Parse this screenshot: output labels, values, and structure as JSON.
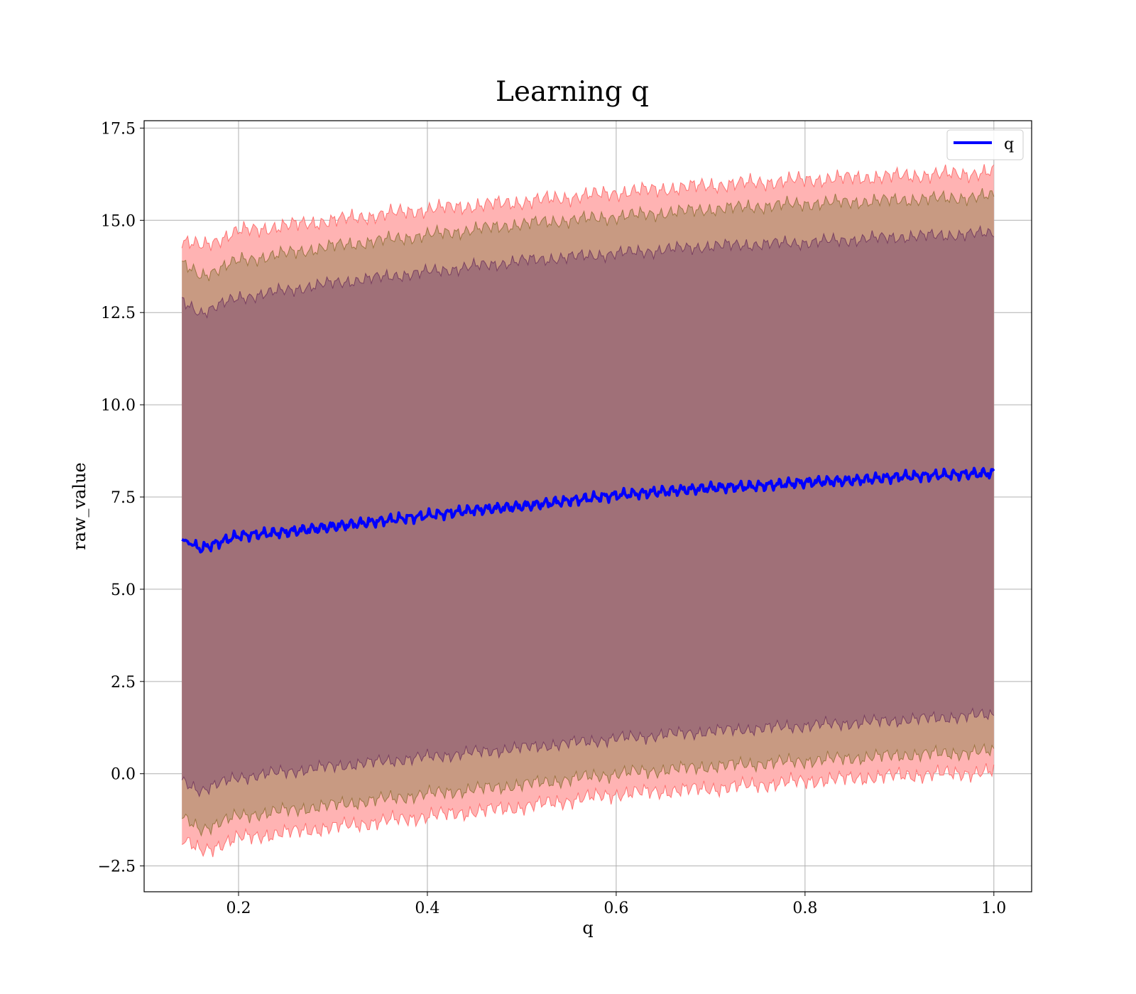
{
  "chart_data": {
    "type": "line",
    "title": "Learning q",
    "xlabel": "q",
    "ylabel": "raw_value",
    "xlim": [
      0.1,
      1.04
    ],
    "ylim": [
      -3.2,
      17.7
    ],
    "xticks": [
      0.2,
      0.4,
      0.6,
      0.8,
      1.0
    ],
    "xtick_labels": [
      "0.2",
      "0.4",
      "0.6",
      "0.8",
      "1.0"
    ],
    "yticks": [
      -2.5,
      0.0,
      2.5,
      5.0,
      7.5,
      10.0,
      12.5,
      15.0,
      17.5
    ],
    "ytick_labels": [
      "−2.5",
      "0.0",
      "2.5",
      "5.0",
      "7.5",
      "10.0",
      "12.5",
      "15.0",
      "17.5"
    ],
    "grid": true,
    "legend_position": "top-right",
    "colors": {
      "line": "#0000ff",
      "band_outer": "#ff5a5a",
      "band_middle": "#8c6a2e",
      "band_inner": "#6b2f5a",
      "fill_outer": "#ffb3b3",
      "fill_middle": "#c89a82",
      "fill_inner": "#a07078",
      "grid": "#b0b0b0"
    },
    "series": [
      {
        "name": "q",
        "x": [
          0.14,
          0.16,
          0.2,
          0.25,
          0.3,
          0.35,
          0.4,
          0.45,
          0.5,
          0.55,
          0.6,
          0.65,
          0.7,
          0.75,
          0.8,
          0.85,
          0.9,
          0.95,
          1.0
        ],
        "y": [
          6.35,
          6.1,
          6.45,
          6.55,
          6.7,
          6.85,
          7.0,
          7.15,
          7.25,
          7.4,
          7.55,
          7.65,
          7.75,
          7.8,
          7.9,
          7.95,
          8.05,
          8.1,
          8.15
        ]
      }
    ],
    "bands": [
      {
        "name": "outer",
        "x": [
          0.14,
          0.16,
          0.2,
          0.3,
          0.4,
          0.5,
          0.6,
          0.7,
          0.8,
          0.9,
          1.0
        ],
        "upper": [
          14.4,
          14.3,
          14.7,
          15.0,
          15.3,
          15.5,
          15.75,
          15.95,
          16.1,
          16.2,
          16.3
        ],
        "lower": [
          -1.8,
          -2.1,
          -1.75,
          -1.45,
          -1.15,
          -0.9,
          -0.55,
          -0.4,
          -0.2,
          -0.05,
          0.05
        ]
      },
      {
        "name": "middle",
        "x": [
          0.14,
          0.16,
          0.2,
          0.3,
          0.4,
          0.5,
          0.6,
          0.7,
          0.8,
          0.9,
          1.0
        ],
        "upper": [
          13.8,
          13.5,
          13.9,
          14.3,
          14.6,
          14.9,
          15.1,
          15.3,
          15.45,
          15.55,
          15.65
        ],
        "lower": [
          -1.2,
          -1.5,
          -1.15,
          -0.85,
          -0.55,
          -0.3,
          0.0,
          0.2,
          0.35,
          0.5,
          0.6
        ]
      },
      {
        "name": "inner",
        "x": [
          0.14,
          0.16,
          0.2,
          0.3,
          0.4,
          0.5,
          0.6,
          0.7,
          0.8,
          0.9,
          1.0
        ],
        "upper": [
          12.8,
          12.5,
          12.9,
          13.3,
          13.6,
          13.9,
          14.1,
          14.3,
          14.4,
          14.55,
          14.65
        ],
        "lower": [
          -0.2,
          -0.45,
          -0.1,
          0.2,
          0.45,
          0.7,
          0.95,
          1.15,
          1.3,
          1.45,
          1.6
        ]
      }
    ]
  }
}
